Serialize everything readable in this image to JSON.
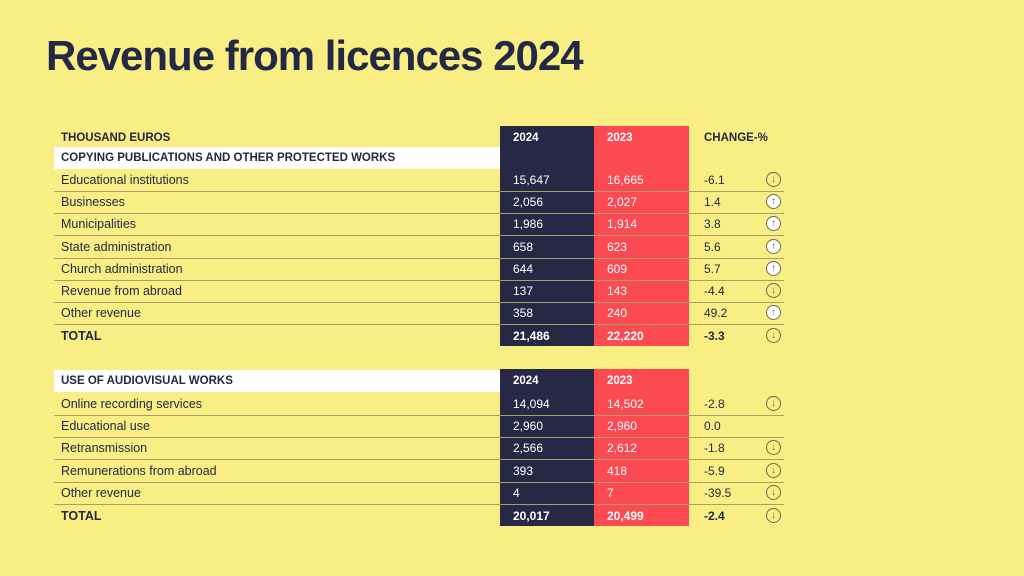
{
  "title": "Revenue from licences 2024",
  "colors": {
    "background": "#f8ee84",
    "col_2024": "#262846",
    "col_2023": "#fb4a52",
    "text": "#232844"
  },
  "table1": {
    "unit_label": "THOUSAND EUROS",
    "col_2024": "2024",
    "col_2023": "2023",
    "col_change": "CHANGE-%",
    "section_label": "COPYING PUBLICATIONS AND OTHER PROTECTED WORKS",
    "rows": [
      {
        "label": "Educational institutions",
        "v2024": "15,647",
        "v2023": "16,665",
        "change": "-6.1",
        "trend": "down"
      },
      {
        "label": "Businesses",
        "v2024": "2,056",
        "v2023": "2,027",
        "change": "1.4",
        "trend": "up"
      },
      {
        "label": "Municipalities",
        "v2024": "1,986",
        "v2023": "1,914",
        "change": "3.8",
        "trend": "up"
      },
      {
        "label": "State administration",
        "v2024": "658",
        "v2023": "623",
        "change": "5.6",
        "trend": "up"
      },
      {
        "label": "Church administration",
        "v2024": "644",
        "v2023": "609",
        "change": "5.7",
        "trend": "up"
      },
      {
        "label": "Revenue from abroad",
        "v2024": "137",
        "v2023": "143",
        "change": "-4.4",
        "trend": "down"
      },
      {
        "label": "Other revenue",
        "v2024": "358",
        "v2023": "240",
        "change": "49.2",
        "trend": "up"
      }
    ],
    "total": {
      "label": "TOTAL",
      "v2024": "21,486",
      "v2023": "22,220",
      "change": "-3.3",
      "trend": "down"
    }
  },
  "table2": {
    "section_label": "USE OF AUDIOVISUAL WORKS",
    "col_2024": "2024",
    "col_2023": "2023",
    "rows": [
      {
        "label": "Online recording services",
        "v2024": "14,094",
        "v2023": "14,502",
        "change": "-2.8",
        "trend": "down"
      },
      {
        "label": "Educational use",
        "v2024": "2,960",
        "v2023": "2,960",
        "change": "0.0",
        "trend": "none"
      },
      {
        "label": "Retransmission",
        "v2024": "2,566",
        "v2023": "2,612",
        "change": "-1.8",
        "trend": "down"
      },
      {
        "label": "Remunerations from abroad",
        "v2024": "393",
        "v2023": "418",
        "change": "-5.9",
        "trend": "down"
      },
      {
        "label": "Other revenue",
        "v2024": "4",
        "v2023": "7",
        "change": "-39.5",
        "trend": "down"
      }
    ],
    "total": {
      "label": "TOTAL",
      "v2024": "20,017",
      "v2023": "20,499",
      "change": "-2.4",
      "trend": "down"
    }
  }
}
